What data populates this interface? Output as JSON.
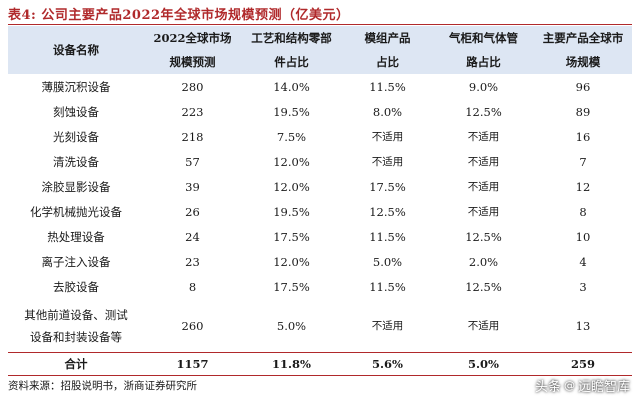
{
  "table_title": "表4:  公司主要产品2022年全球市场规模预测（亿美元）",
  "headers": [
    {
      "line1": "设备名称",
      "line2": ""
    },
    {
      "line1": "2022全球市场",
      "line2": "规模预测"
    },
    {
      "line1": "工艺和结构零部",
      "line2": "件占比"
    },
    {
      "line1": "模组产品",
      "line2": "占比"
    },
    {
      "line1": "气柜和气体管",
      "line2": "路占比"
    },
    {
      "line1": "主要产品全球市",
      "line2": "场规模"
    }
  ],
  "rows": [
    [
      "薄膜沉积设备",
      "280",
      "14.0%",
      "11.5%",
      "9.0%",
      "96"
    ],
    [
      "刻蚀设备",
      "223",
      "19.5%",
      "8.0%",
      "12.5%",
      "89"
    ],
    [
      "光刻设备",
      "218",
      "7.5%",
      "不适用",
      "不适用",
      "16"
    ],
    [
      "清洗设备",
      "57",
      "12.0%",
      "不适用",
      "不适用",
      "7"
    ],
    [
      "涂胶显影设备",
      "39",
      "12.0%",
      "17.5%",
      "不适用",
      "12"
    ],
    [
      "化学机械抛光设备",
      "26",
      "19.5%",
      "12.5%",
      "不适用",
      "8"
    ],
    [
      "热处理设备",
      "24",
      "17.5%",
      "11.5%",
      "12.5%",
      "10"
    ],
    [
      "离子注入设备",
      "23",
      "12.0%",
      "5.0%",
      "2.0%",
      "4"
    ],
    [
      "去胶设备",
      "8",
      "17.5%",
      "11.5%",
      "12.5%",
      "3"
    ]
  ],
  "tall_row": {
    "name_line1": "其他前道设备、测试",
    "name_line2": "设备和封装设备等",
    "cells": [
      "260",
      "5.0%",
      "不适用",
      "不适用",
      "13"
    ]
  },
  "total_row": [
    "合计",
    "1157",
    "11.8%",
    "5.6%",
    "5.0%",
    "259"
  ],
  "source": "资料来源：招股说明书，浙商证券研究所",
  "watermark": {
    "left": "头条",
    "sep": "@",
    "right": "远瞻智库"
  }
}
